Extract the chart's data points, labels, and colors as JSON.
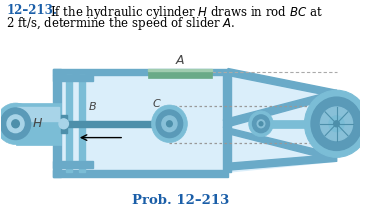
{
  "bg_color": "#ffffff",
  "title_color": "#1a5ea8",
  "title_fontsize": 8.5,
  "prob_label": "Prob. 12–213",
  "prob_fontsize": 9.5,
  "label_color": "#444444",
  "bc": "#7bbdd6",
  "bd": "#4d8faa",
  "bl": "#a8d4e8",
  "fc": "#6aaac8",
  "wc": "#5a9ab8",
  "wi": "#88c0d8",
  "gs": "#6aaa88",
  "gd": "#4a8a68",
  "gl": "#a0ccb0",
  "inner_bg": "#c8e4f4",
  "inner_bg2": "#daeefa"
}
